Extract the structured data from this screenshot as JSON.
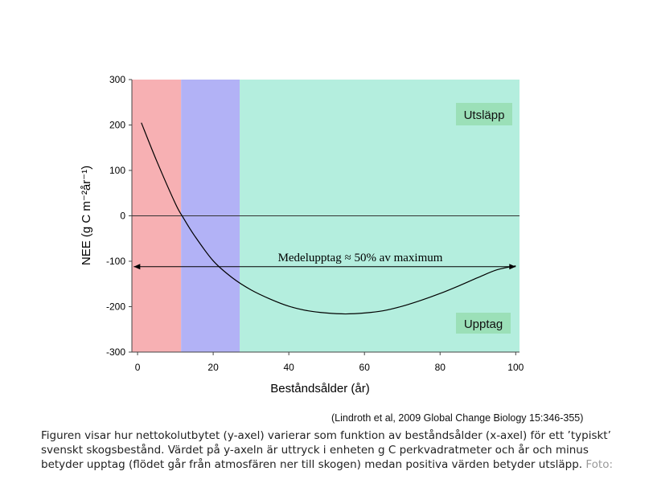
{
  "chart_data": {
    "type": "line",
    "xlabel": "Beståndsålder (år)",
    "ylabel": "NEE (g C m⁻²år⁻¹)",
    "xlim": [
      -1.5,
      101
    ],
    "ylim": [
      -300,
      300
    ],
    "xticks": [
      0,
      20,
      40,
      60,
      80,
      100
    ],
    "yticks": [
      300,
      200,
      100,
      0,
      -100,
      -200,
      -300
    ],
    "grid": false,
    "regions": [
      {
        "x0": -1.5,
        "x1": 11.5,
        "color": "#f7b0b3"
      },
      {
        "x0": 11.5,
        "x1": 27,
        "color": "#b2b2f6"
      },
      {
        "x0": 27,
        "x1": 101,
        "color": "#b4eede"
      }
    ],
    "series": [
      {
        "color": "#000000",
        "x": [
          1,
          5,
          10,
          12,
          15,
          20,
          25,
          30,
          35,
          40,
          45,
          50,
          55,
          60,
          65,
          70,
          75,
          80,
          85,
          90,
          95,
          100
        ],
        "y": [
          205,
          122,
          27,
          -3,
          -43,
          -99,
          -136,
          -163,
          -183,
          -199,
          -209,
          -214,
          -216,
          -214,
          -209,
          -199,
          -186,
          -171,
          -154,
          -136,
          -119,
          -110
        ]
      }
    ],
    "zero_line": 0,
    "reference_arrow": {
      "y": -112,
      "x0": -1,
      "x1": 100
    },
    "annotations": {
      "mean": "Medelupptag  ≈ 50% av maximum",
      "emission": "Utsläpp",
      "uptake": "Upptag"
    },
    "colors": {
      "label_box": "#9be0b8",
      "curve": "#000000"
    }
  },
  "citation": "(Lindroth et al, 2009 Global Change Biology 15:346-355)",
  "caption": {
    "text": "Figuren visar hur nettokolutbytet (y-axel) varierar som funktion av beståndsålder (x-axel) för ett ’typiskt’ svenskt skogsbestånd. Värdet på y-axeln är uttryck i enheten g C perkvadratmeter och år och minus betyder upptag (flödet går från atmosfären ner till skogen) medan positiva värden betyder utsläpp.",
    "credit": "Foto:"
  }
}
